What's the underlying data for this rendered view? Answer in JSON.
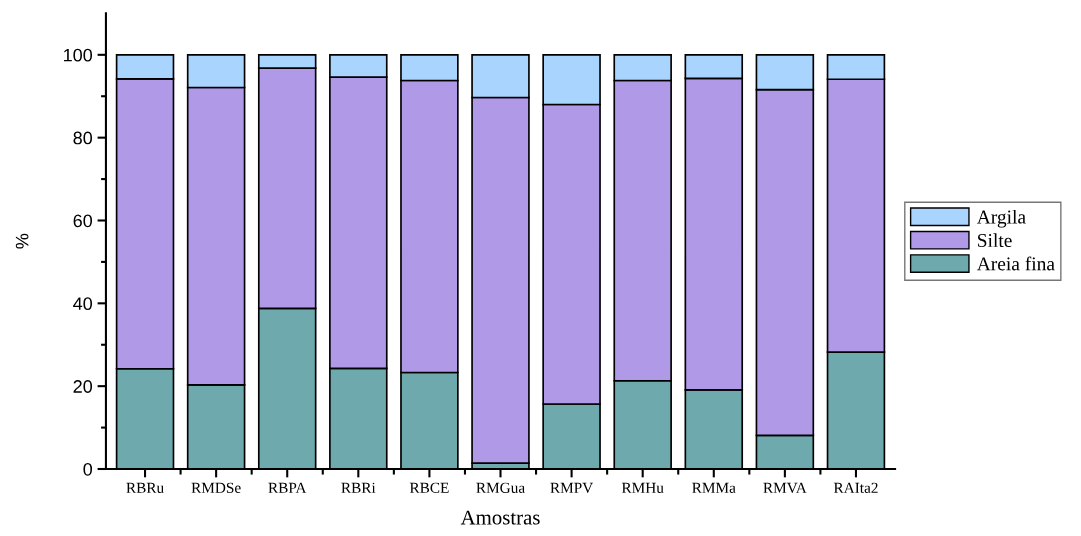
{
  "chart_data": {
    "type": "bar",
    "stacked": true,
    "xlabel": "Amostras",
    "ylabel": "%",
    "categories": [
      "RBRu",
      "RMDSe",
      "RBPA",
      "RBRi",
      "RBCE",
      "RMGua",
      "RMPV",
      "RMHu",
      "RMMa",
      "RMVA",
      "RAIta2"
    ],
    "series": [
      {
        "name": "Areia fina",
        "color": "#6eaaad",
        "values": [
          24.2,
          20.3,
          38.8,
          24.3,
          23.3,
          1.4,
          15.7,
          21.3,
          19.1,
          8.1,
          28.2
        ]
      },
      {
        "name": "Silte",
        "color": "#b09ae8",
        "values": [
          70.0,
          71.8,
          58.0,
          70.3,
          70.5,
          88.3,
          72.3,
          72.5,
          75.2,
          83.5,
          65.9
        ]
      },
      {
        "name": "Argila",
        "color": "#a8d4fe",
        "values": [
          5.8,
          7.9,
          3.2,
          5.4,
          6.2,
          10.3,
          12.0,
          6.2,
          5.7,
          8.4,
          5.9
        ]
      }
    ],
    "ylim": [
      0,
      110
    ],
    "yticks": [
      0,
      {
        "value": 10,
        "label": null
      },
      20,
      {
        "value": 30,
        "label": null
      },
      40,
      {
        "value": 50,
        "label": null
      },
      60,
      {
        "value": 70,
        "label": null
      },
      80,
      {
        "value": 90,
        "label": null
      },
      100
    ],
    "grid": false,
    "legend": "right"
  }
}
